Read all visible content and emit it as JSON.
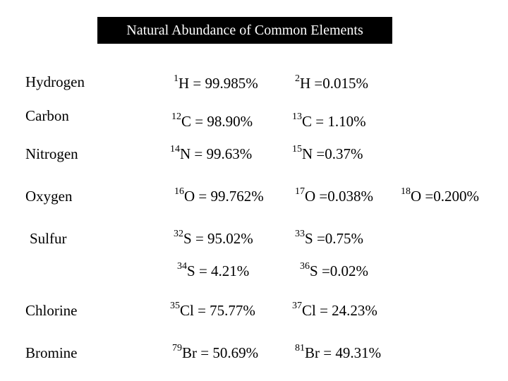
{
  "title": "Natural Abundance of Common Elements",
  "elements": [
    {
      "name": "Hydrogen",
      "isotopes": [
        {
          "mass": "1",
          "symbol": "H",
          "text": " = 99.985%"
        },
        {
          "mass": "2",
          "symbol": "H",
          "text": " =0.015%"
        }
      ]
    },
    {
      "name": "Carbon",
      "isotopes": [
        {
          "mass": "12",
          "symbol": "C",
          "text": " = 98.90%"
        },
        {
          "mass": "13",
          "symbol": "C",
          "text": " = 1.10%"
        }
      ]
    },
    {
      "name": "Nitrogen",
      "isotopes": [
        {
          "mass": "14",
          "symbol": "N",
          "text": " = 99.63%"
        },
        {
          "mass": "15",
          "symbol": "N",
          "text": " =0.37%"
        }
      ]
    },
    {
      "name": "Oxygen",
      "isotopes": [
        {
          "mass": "16",
          "symbol": "O",
          "text": " = 99.762%"
        },
        {
          "mass": "17",
          "symbol": "O",
          "text": " =0.038%"
        },
        {
          "mass": "18",
          "symbol": "O",
          "text": " =0.200%"
        }
      ]
    },
    {
      "name": "Sulfur",
      "isotopes": [
        {
          "mass": "32",
          "symbol": "S",
          "text": " = 95.02%"
        },
        {
          "mass": "33",
          "symbol": "S",
          "text": " =0.75%"
        },
        {
          "mass": "34",
          "symbol": "S",
          "text": " = 4.21%"
        },
        {
          "mass": "36",
          "symbol": "S",
          "text": " =0.02%"
        }
      ]
    },
    {
      "name": "Chlorine",
      "isotopes": [
        {
          "mass": "35",
          "symbol": "Cl",
          "text": " = 75.77%"
        },
        {
          "mass": "37",
          "symbol": "Cl",
          "text": " = 24.23%"
        }
      ]
    },
    {
      "name": "Bromine",
      "isotopes": [
        {
          "mass": "79",
          "symbol": "Br",
          "text": " = 50.69%"
        },
        {
          "mass": "81",
          "symbol": "Br",
          "text": " = 49.31%"
        }
      ]
    }
  ]
}
